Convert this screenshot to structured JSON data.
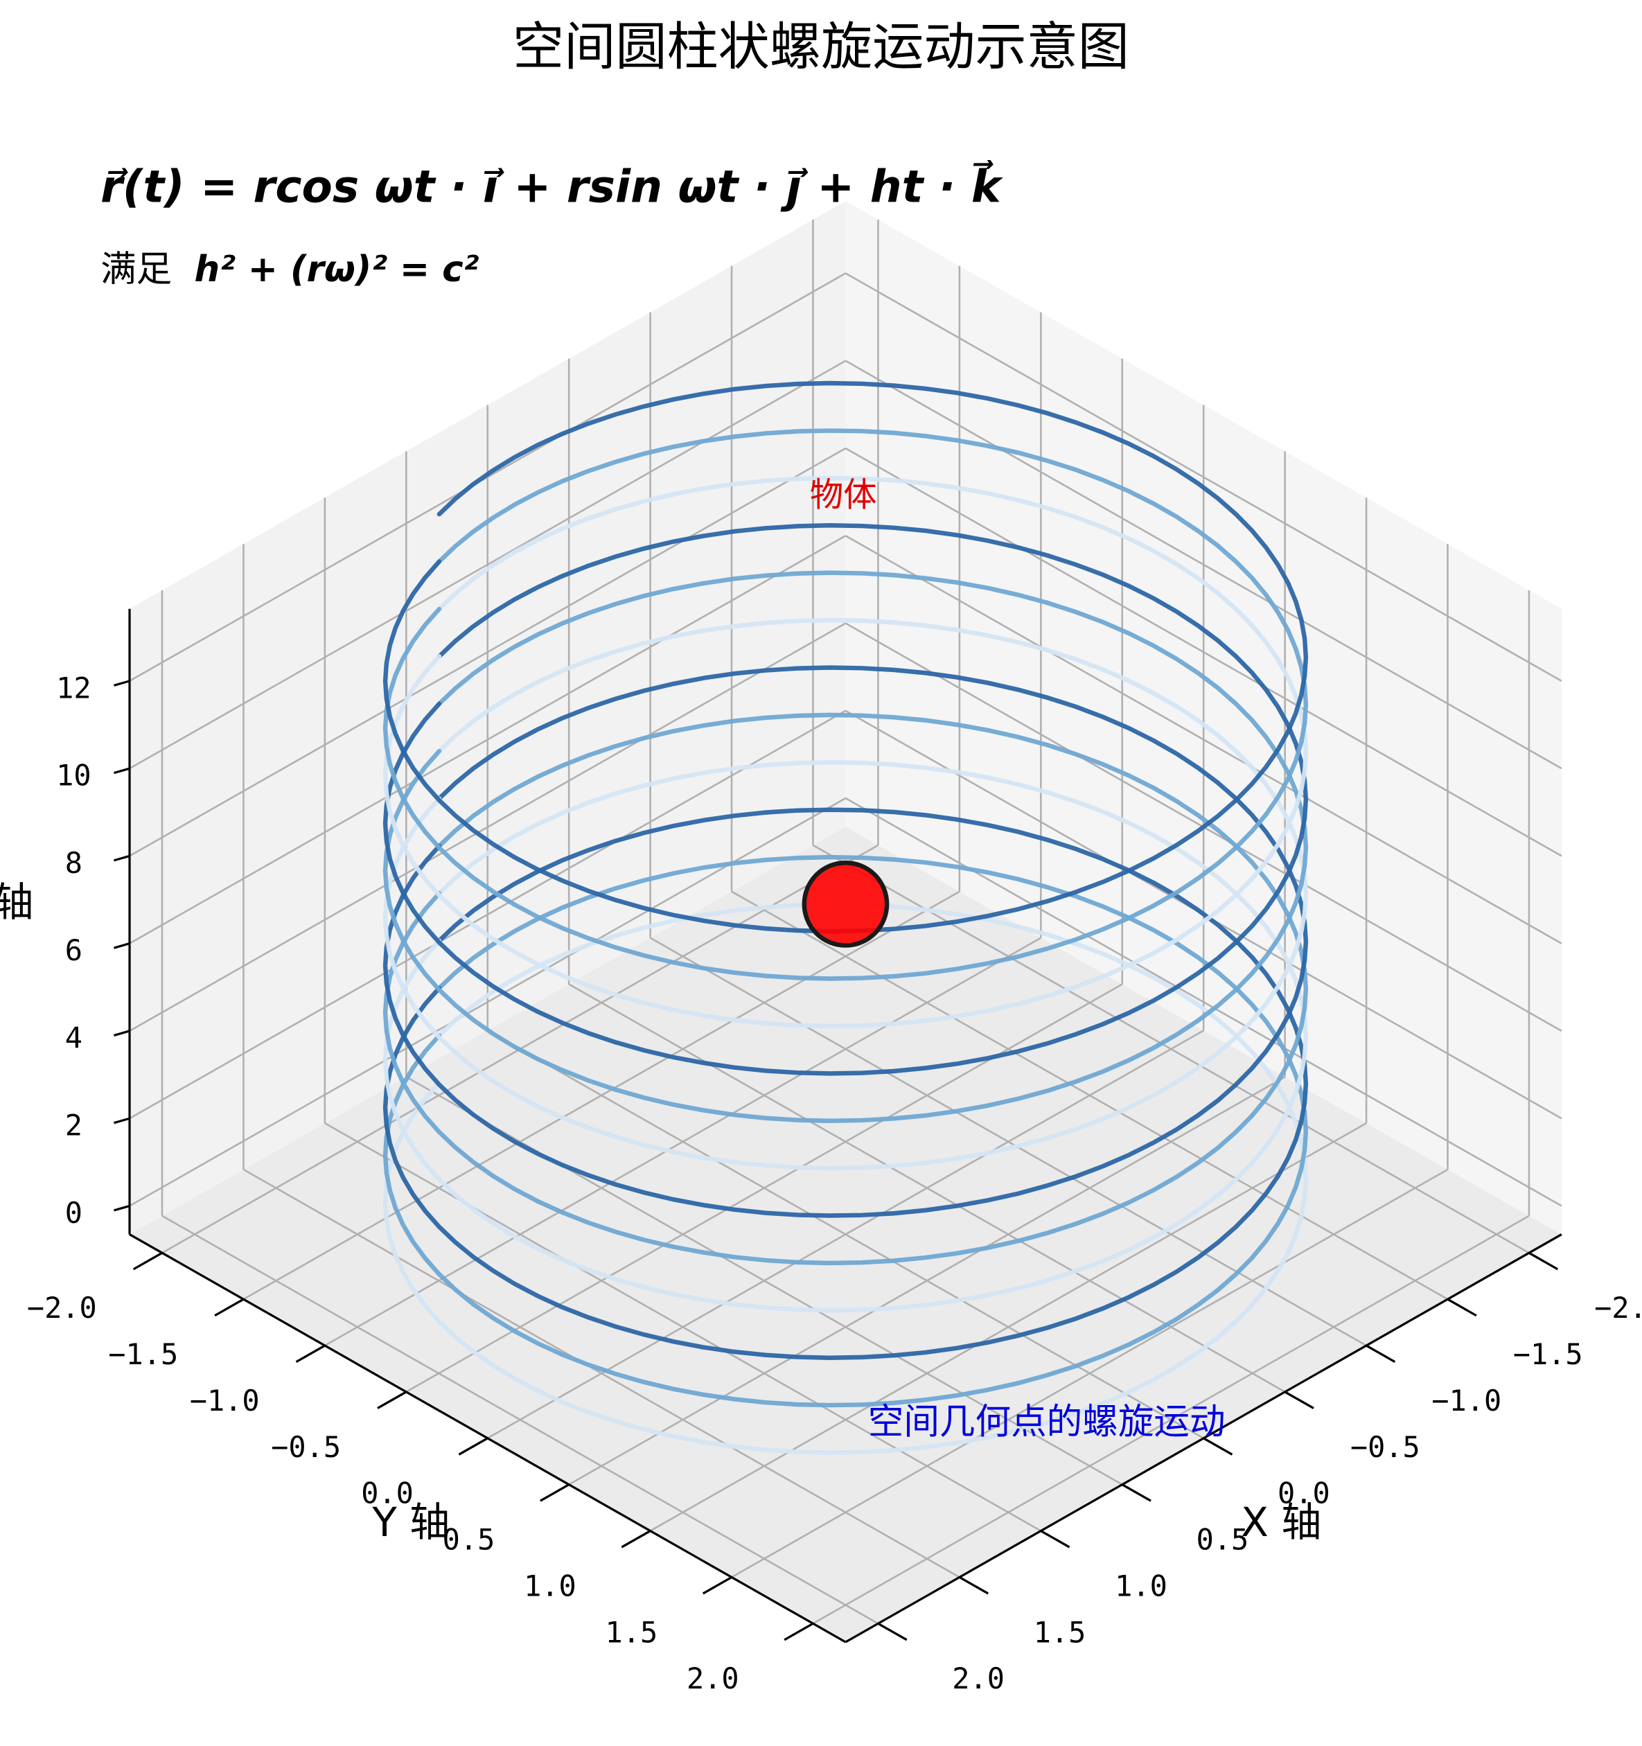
{
  "chart_data": {
    "type": "helix3d",
    "title": "空间圆柱状螺旋运动示意图",
    "formula": "r⃗(t) = rcos ωt · i⃗ + rsin ωt · j⃗ + ht · k⃗",
    "condition_prefix": "满足",
    "condition": "h² + (rω)² = c²",
    "point_label": "物体",
    "curve_label": "空间几何点的螺旋运动",
    "xlabel": "X 轴",
    "ylabel": "Y 轴",
    "zlabel": "Z 轴",
    "xlim": [
      -2.2,
      2.2
    ],
    "ylim": [
      -2.2,
      2.2
    ],
    "zlim": [
      -0.65,
      13.65
    ],
    "xticks": [
      {
        "value": -2,
        "label": "−2.0"
      },
      {
        "value": -1.5,
        "label": "−1.5"
      },
      {
        "value": -1,
        "label": "−1.0"
      },
      {
        "value": -0.5,
        "label": "−0.5"
      },
      {
        "value": 0,
        "label": "0.0"
      },
      {
        "value": 0.5,
        "label": "0.5"
      },
      {
        "value": 1,
        "label": "1.0"
      },
      {
        "value": 1.5,
        "label": "1.5"
      },
      {
        "value": 2,
        "label": "2.0"
      }
    ],
    "yticks": [
      {
        "value": -2,
        "label": "−2.0"
      },
      {
        "value": -1.5,
        "label": "−1.5"
      },
      {
        "value": -1,
        "label": "−1.0"
      },
      {
        "value": -0.5,
        "label": "−0.5"
      },
      {
        "value": 0,
        "label": "0.0"
      },
      {
        "value": 0.5,
        "label": "0.5"
      },
      {
        "value": 1,
        "label": "1.0"
      },
      {
        "value": 1.5,
        "label": "1.5"
      },
      {
        "value": 2,
        "label": "2.0"
      }
    ],
    "zticks": [
      0,
      2,
      4,
      6,
      8,
      10,
      12
    ],
    "grid": true,
    "helix": {
      "radius": 2,
      "z": [
        0,
        13
      ],
      "turns": 12,
      "start_angle": -73,
      "colors": [
        "#d4e5f4",
        "#6fa8d3",
        "#2c66a6"
      ]
    },
    "point": {
      "x": 0,
      "y": 0,
      "z": 6.9,
      "color": "#ff0000"
    }
  }
}
